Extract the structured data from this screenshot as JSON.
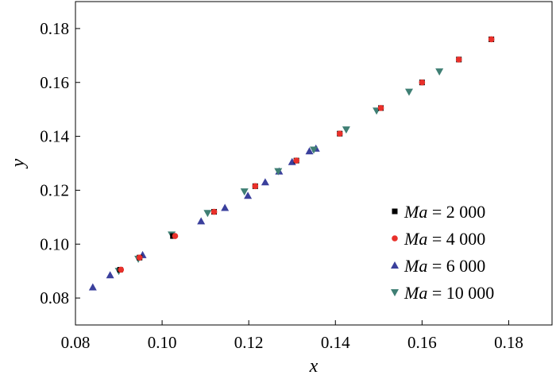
{
  "chart_data": {
    "type": "scatter",
    "xlabel": "x",
    "ylabel": "y",
    "xlim": [
      0.08,
      0.19
    ],
    "ylim": [
      0.07,
      0.19
    ],
    "xticks": [
      "0.08",
      "0.10",
      "0.12",
      "0.14",
      "0.16",
      "0.18"
    ],
    "xtick_values": [
      0.08,
      0.1,
      0.12,
      0.14,
      0.16,
      0.18
    ],
    "yticks": [
      "0.08",
      "0.10",
      "0.12",
      "0.14",
      "0.16",
      "0.18"
    ],
    "ytick_values": [
      0.08,
      0.1,
      0.12,
      0.14,
      0.16,
      0.18
    ],
    "grid": false,
    "legend_position": "bottom-right",
    "series": [
      {
        "name": "Ma = 2 000",
        "name_italic": "Ma",
        "name_rest": " = 2 000",
        "marker": "square",
        "color": "#000000",
        "x": [
          0.0903,
          0.0948,
          0.1025,
          0.112,
          0.1215,
          0.131,
          0.141,
          0.1505,
          0.16,
          0.1685,
          0.176
        ],
        "y": [
          0.0905,
          0.095,
          0.103,
          0.112,
          0.1215,
          0.131,
          0.141,
          0.1505,
          0.16,
          0.1685,
          0.176
        ]
      },
      {
        "name": "Ma = 4 000",
        "name_italic": "Ma",
        "name_rest": " = 4 000",
        "marker": "circle",
        "color": "#e8302a",
        "x": [
          0.0905,
          0.0948,
          0.103,
          0.112,
          0.1215,
          0.131,
          0.141,
          0.1505,
          0.16,
          0.1685,
          0.176
        ],
        "y": [
          0.0905,
          0.095,
          0.103,
          0.112,
          0.1215,
          0.131,
          0.141,
          0.1505,
          0.16,
          0.1685,
          0.176
        ]
      },
      {
        "name": "Ma = 6 000",
        "name_italic": "Ma",
        "name_rest": " = 6 000",
        "marker": "triangle-up",
        "color": "#3a3f9c",
        "x": [
          0.084,
          0.088,
          0.0955,
          0.109,
          0.1145,
          0.1198,
          0.1238,
          0.127,
          0.13,
          0.134,
          0.1355
        ],
        "y": [
          0.084,
          0.0885,
          0.096,
          0.1085,
          0.1135,
          0.118,
          0.123,
          0.127,
          0.1305,
          0.1345,
          0.1355
        ]
      },
      {
        "name": "Ma = 10 000",
        "name_italic": "Ma",
        "name_rest": " = 10 000",
        "marker": "triangle-down",
        "color": "#3f7f74",
        "x": [
          0.09,
          0.0945,
          0.1022,
          0.1105,
          0.119,
          0.1268,
          0.135,
          0.1425,
          0.1495,
          0.157,
          0.164
        ],
        "y": [
          0.09,
          0.0945,
          0.1035,
          0.1115,
          0.1195,
          0.127,
          0.135,
          0.1425,
          0.1495,
          0.1565,
          0.164
        ]
      }
    ]
  }
}
